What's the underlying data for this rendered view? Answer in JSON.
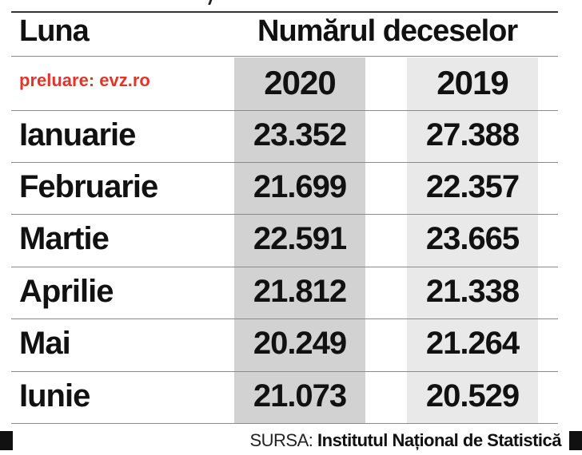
{
  "header": {
    "month_col": "Luna",
    "title": "Numărul deceselor",
    "credit": "preluare: evz.ro"
  },
  "colors": {
    "credit": "#e2352a",
    "col_2020_bg": "#d2d2d2",
    "col_2019_bg": "#e9e9e9"
  },
  "chart_data": {
    "type": "table",
    "columns": [
      "2020",
      "2019"
    ],
    "rows": [
      {
        "month": "Ianuarie",
        "v2020": "23.352",
        "v2019": "27.388"
      },
      {
        "month": "Februarie",
        "v2020": "21.699",
        "v2019": "22.357"
      },
      {
        "month": "Martie",
        "v2020": "22.591",
        "v2019": "23.665"
      },
      {
        "month": "Aprilie",
        "v2020": "21.812",
        "v2019": "21.338"
      },
      {
        "month": "Mai",
        "v2020": "20.249",
        "v2019": "21.264"
      },
      {
        "month": "Iunie",
        "v2020": "21.073",
        "v2019": "20.529"
      }
    ]
  },
  "footer": {
    "source_label": "SURSA:",
    "source_name": "Institutul Național de Statistică"
  }
}
